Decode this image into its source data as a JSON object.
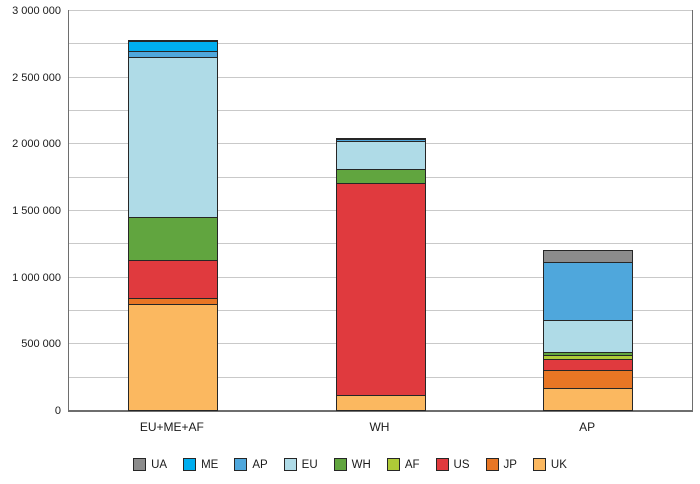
{
  "chart_data": {
    "type": "bar",
    "stacked": true,
    "title": "",
    "xlabel": "",
    "ylabel": "",
    "categories": [
      "EU+ME+AF",
      "WH",
      "AP"
    ],
    "series": [
      {
        "name": "UK",
        "color": "#fbb860",
        "values": [
          800000,
          120000,
          170000
        ]
      },
      {
        "name": "JP",
        "color": "#e87624",
        "values": [
          50000,
          0,
          140000
        ]
      },
      {
        "name": "US",
        "color": "#e03a3e",
        "values": [
          290000,
          1600000,
          90000
        ]
      },
      {
        "name": "AF",
        "color": "#afcb37",
        "values": [
          0,
          0,
          40000
        ]
      },
      {
        "name": "WH",
        "color": "#61a53f",
        "values": [
          330000,
          110000,
          30000
        ]
      },
      {
        "name": "EU",
        "color": "#afdbe7",
        "values": [
          1210000,
          220000,
          250000
        ]
      },
      {
        "name": "AP",
        "color": "#4fa7dc",
        "values": [
          50000,
          20000,
          440000
        ]
      },
      {
        "name": "ME",
        "color": "#00aeef",
        "values": [
          80000,
          0,
          0
        ]
      },
      {
        "name": "UA",
        "color": "#8c8c8c",
        "values": [
          10000,
          10000,
          100000
        ]
      }
    ],
    "legend_order": [
      "UA",
      "ME",
      "AP",
      "EU",
      "WH",
      "AF",
      "US",
      "JP",
      "UK"
    ],
    "legend_position": "bottom",
    "ylim": [
      0,
      3000000
    ],
    "grid_step": 250000,
    "ytick_step": 500000,
    "yticks": [
      {
        "value": 0,
        "label": "0"
      },
      {
        "value": 500000,
        "label": "500 000"
      },
      {
        "value": 1000000,
        "label": "1 000 000"
      },
      {
        "value": 1500000,
        "label": "1 500 000"
      },
      {
        "value": 2000000,
        "label": "2 000 000"
      },
      {
        "value": 2500000,
        "label": "2 500 000"
      },
      {
        "value": 3000000,
        "label": "3 000 000"
      }
    ],
    "grid": true
  }
}
